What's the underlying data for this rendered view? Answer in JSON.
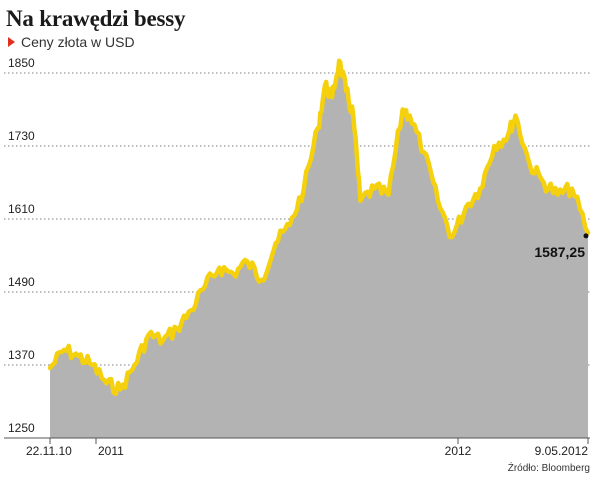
{
  "header": {
    "title": "Na krawędzi bessy",
    "subtitle": "Ceny złota w USD"
  },
  "source": "Źródło: Bloomberg",
  "colors": {
    "line": "#f5d10d",
    "area": "#b3b3b3",
    "marker_triangle": "#e0301e",
    "grid": "#555555"
  },
  "chart_data": {
    "type": "area",
    "ylim": [
      1250,
      1850
    ],
    "yticks": [
      1250,
      1370,
      1490,
      1610,
      1730,
      1850
    ],
    "xtick_labels": [
      "22.11.10",
      "2011",
      "2012",
      "9.05.2012"
    ],
    "x_range": [
      "22.11.10",
      "9.05.2012"
    ],
    "grid": "horizontal dotted",
    "last_value_label": "1587,25",
    "last_value": 1587.25,
    "series": [
      {
        "x": [
          "2010-11-22",
          "2010-12-06",
          "2010-12-20",
          "2011-01-03",
          "2011-01-17",
          "2011-01-31",
          "2011-02-14",
          "2011-02-28",
          "2011-03-14",
          "2011-03-28",
          "2011-04-11",
          "2011-04-25",
          "2011-05-09",
          "2011-05-23",
          "2011-06-06",
          "2011-06-20",
          "2011-07-04",
          "2011-07-18",
          "2011-08-01",
          "2011-08-15",
          "2011-08-22",
          "2011-08-29",
          "2011-09-05",
          "2011-09-12",
          "2011-09-19",
          "2011-09-26",
          "2011-10-10",
          "2011-10-24",
          "2011-11-07",
          "2011-11-14",
          "2011-11-28",
          "2011-12-12",
          "2011-12-26",
          "2012-01-09",
          "2012-01-23",
          "2012-02-06",
          "2012-02-20",
          "2012-02-27",
          "2012-03-12",
          "2012-03-26",
          "2012-04-09",
          "2012-04-23",
          "2012-05-09"
        ],
        "values": [
          1365,
          1395,
          1385,
          1370,
          1340,
          1330,
          1370,
          1420,
          1410,
          1430,
          1460,
          1500,
          1530,
          1520,
          1540,
          1510,
          1570,
          1600,
          1660,
          1760,
          1830,
          1810,
          1870,
          1820,
          1780,
          1640,
          1660,
          1650,
          1790,
          1780,
          1720,
          1640,
          1580,
          1630,
          1660,
          1730,
          1750,
          1780,
          1700,
          1670,
          1650,
          1660,
          1587.25
        ]
      }
    ]
  }
}
